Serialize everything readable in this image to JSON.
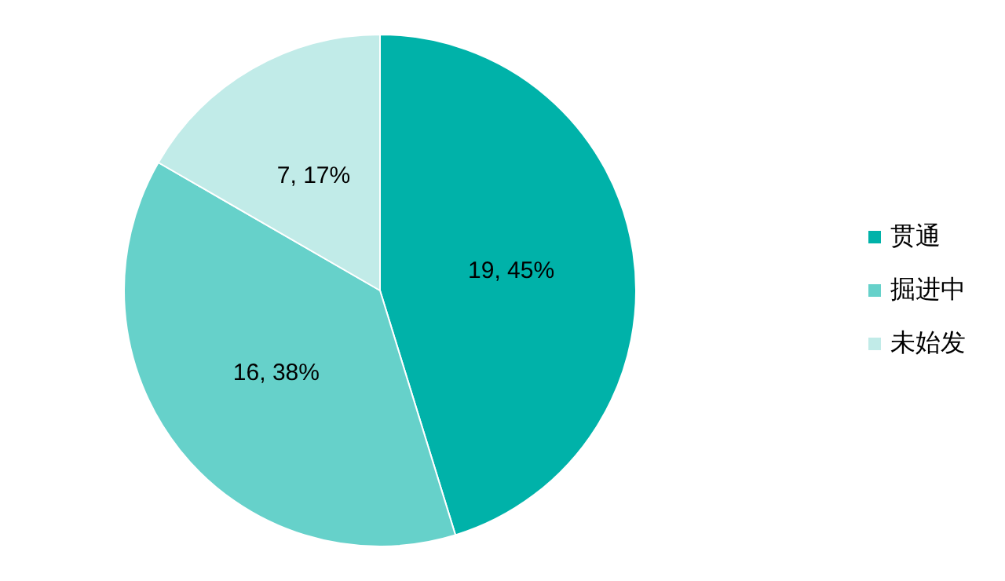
{
  "chart_data": {
    "type": "pie",
    "categories": [
      "贯通",
      "掘进中",
      "未始发"
    ],
    "values": [
      19,
      16,
      7
    ],
    "colors": [
      "#00b2a9",
      "#66d1ca",
      "#c1ebe8"
    ],
    "value_labels": [
      "19, 45%",
      "16, 38%",
      "7, 17%"
    ],
    "legend": "right"
  }
}
